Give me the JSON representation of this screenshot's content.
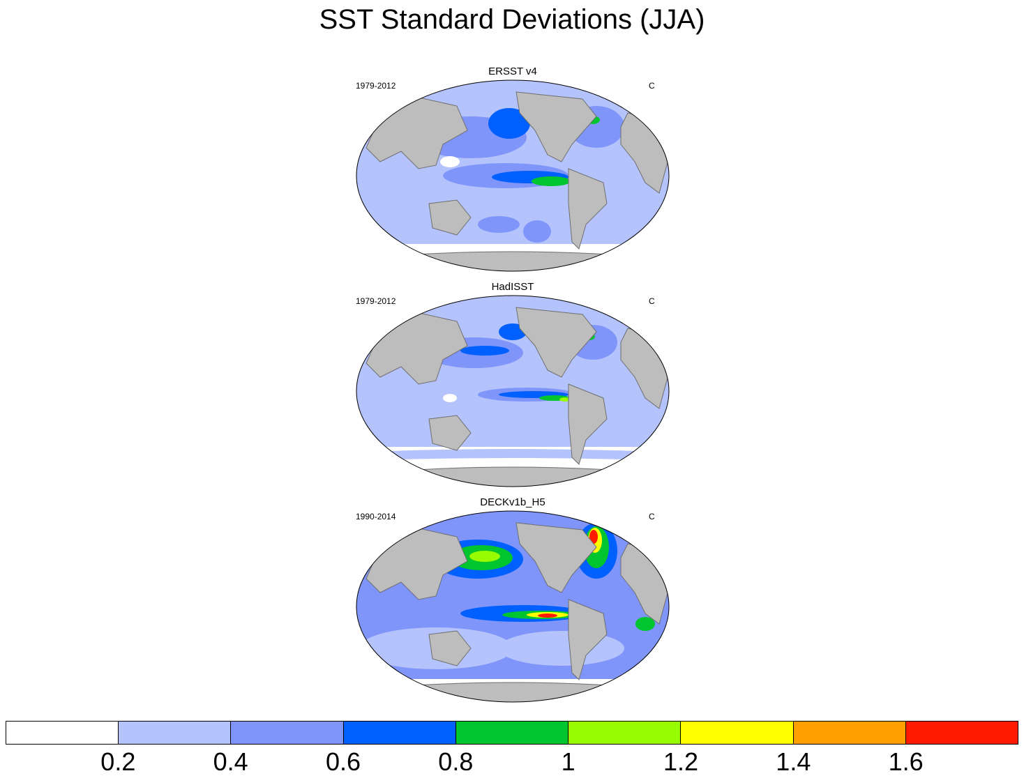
{
  "figure": {
    "title": "SST Standard Deviations (JJA)"
  },
  "panels": [
    {
      "name": "ERSST v4",
      "period": "1979-2012",
      "units": "C"
    },
    {
      "name": "HadISST",
      "period": "1979-2012",
      "units": "C"
    },
    {
      "name": "DECKv1b_H5",
      "period": "1990-2014",
      "units": "C"
    }
  ],
  "colorbar": {
    "colors": [
      "#ffffff",
      "#b4c3fb",
      "#8095fa",
      "#0060ff",
      "#00c52e",
      "#98fb00",
      "#ffff00",
      "#ff9f00",
      "#ff1a00"
    ],
    "ticks": [
      "0.2",
      "0.4",
      "0.6",
      "0.8",
      "1",
      "1.2",
      "1.4",
      "1.6"
    ]
  },
  "legend_colors": {
    "land": "#bdbdbd",
    "coast": "#6e6e6e"
  }
}
